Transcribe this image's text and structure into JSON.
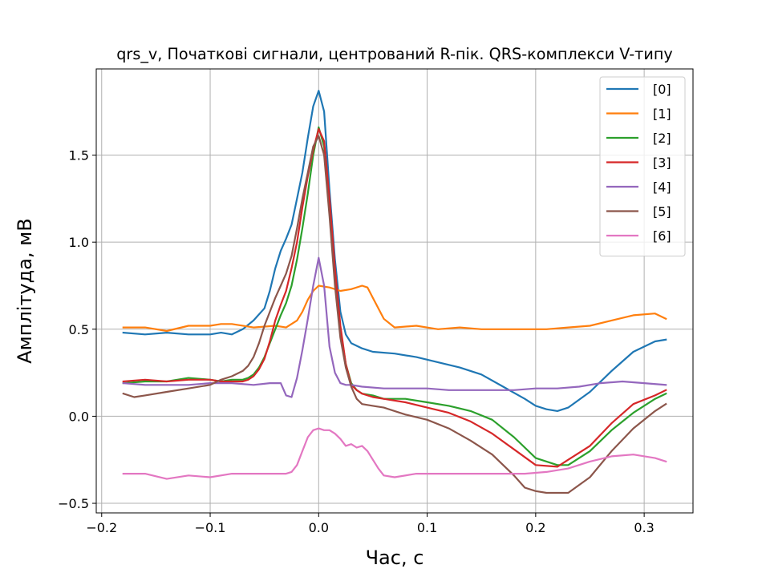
{
  "chart_data": {
    "type": "line",
    "title": "qrs_v, Початкові сигнали, центрований R-пік. QRS-комплекси V-типу",
    "xlabel": "Час, с",
    "ylabel": "Амплітуда, мВ",
    "xlim": [
      -0.205,
      0.345
    ],
    "ylim": [
      -0.555,
      1.995
    ],
    "xticks": [
      -0.2,
      -0.1,
      0.0,
      0.1,
      0.2,
      0.3
    ],
    "xtick_labels": [
      "−0.2",
      "−0.1",
      "0.0",
      "0.1",
      "0.2",
      "0.3"
    ],
    "yticks": [
      -0.5,
      0.0,
      0.5,
      1.0,
      1.5
    ],
    "ytick_labels": [
      "−0.5",
      "0.0",
      "0.5",
      "1.0",
      "1.5"
    ],
    "grid": true,
    "legend_position": "top-right",
    "series": [
      {
        "name": "[0]",
        "color": "#1f77b4",
        "x": [
          -0.18,
          -0.16,
          -0.14,
          -0.12,
          -0.1,
          -0.09,
          -0.08,
          -0.07,
          -0.06,
          -0.05,
          -0.045,
          -0.04,
          -0.035,
          -0.03,
          -0.025,
          -0.02,
          -0.015,
          -0.01,
          -0.005,
          0.0,
          0.005,
          0.01,
          0.015,
          0.02,
          0.025,
          0.03,
          0.04,
          0.05,
          0.07,
          0.09,
          0.11,
          0.13,
          0.15,
          0.17,
          0.19,
          0.2,
          0.21,
          0.22,
          0.23,
          0.25,
          0.27,
          0.29,
          0.31,
          0.32
        ],
        "y": [
          0.48,
          0.47,
          0.48,
          0.47,
          0.47,
          0.48,
          0.47,
          0.5,
          0.55,
          0.62,
          0.72,
          0.85,
          0.95,
          1.02,
          1.1,
          1.25,
          1.4,
          1.6,
          1.78,
          1.87,
          1.75,
          1.3,
          0.9,
          0.6,
          0.47,
          0.42,
          0.39,
          0.37,
          0.36,
          0.34,
          0.31,
          0.28,
          0.24,
          0.17,
          0.1,
          0.06,
          0.04,
          0.03,
          0.05,
          0.14,
          0.26,
          0.37,
          0.43,
          0.44
        ]
      },
      {
        "name": "[1]",
        "color": "#ff7f0e",
        "x": [
          -0.18,
          -0.16,
          -0.14,
          -0.12,
          -0.1,
          -0.09,
          -0.08,
          -0.06,
          -0.04,
          -0.03,
          -0.02,
          -0.015,
          -0.01,
          -0.005,
          0.0,
          0.01,
          0.02,
          0.03,
          0.04,
          0.045,
          0.05,
          0.055,
          0.06,
          0.07,
          0.09,
          0.11,
          0.13,
          0.15,
          0.17,
          0.19,
          0.21,
          0.23,
          0.25,
          0.27,
          0.29,
          0.31,
          0.32
        ],
        "y": [
          0.51,
          0.51,
          0.49,
          0.52,
          0.52,
          0.53,
          0.53,
          0.51,
          0.52,
          0.51,
          0.55,
          0.6,
          0.67,
          0.72,
          0.75,
          0.74,
          0.72,
          0.73,
          0.75,
          0.74,
          0.68,
          0.62,
          0.56,
          0.51,
          0.52,
          0.5,
          0.51,
          0.5,
          0.5,
          0.5,
          0.5,
          0.51,
          0.52,
          0.55,
          0.58,
          0.59,
          0.56
        ]
      },
      {
        "name": "[2]",
        "color": "#2ca02c",
        "x": [
          -0.18,
          -0.16,
          -0.14,
          -0.12,
          -0.1,
          -0.09,
          -0.08,
          -0.07,
          -0.065,
          -0.06,
          -0.055,
          -0.05,
          -0.045,
          -0.04,
          -0.035,
          -0.03,
          -0.025,
          -0.02,
          -0.015,
          -0.01,
          -0.005,
          0.0,
          0.005,
          0.01,
          0.015,
          0.02,
          0.025,
          0.03,
          0.035,
          0.04,
          0.05,
          0.06,
          0.08,
          0.1,
          0.12,
          0.14,
          0.16,
          0.18,
          0.2,
          0.22,
          0.23,
          0.25,
          0.27,
          0.29,
          0.31,
          0.32
        ],
        "y": [
          0.19,
          0.2,
          0.2,
          0.22,
          0.21,
          0.2,
          0.21,
          0.21,
          0.22,
          0.24,
          0.28,
          0.34,
          0.42,
          0.5,
          0.58,
          0.65,
          0.75,
          0.9,
          1.08,
          1.28,
          1.5,
          1.66,
          1.55,
          1.2,
          0.8,
          0.5,
          0.3,
          0.19,
          0.15,
          0.13,
          0.12,
          0.1,
          0.1,
          0.08,
          0.06,
          0.03,
          -0.02,
          -0.12,
          -0.24,
          -0.28,
          -0.28,
          -0.2,
          -0.08,
          0.02,
          0.1,
          0.13
        ]
      },
      {
        "name": "[3]",
        "color": "#d62728",
        "x": [
          -0.18,
          -0.16,
          -0.14,
          -0.12,
          -0.1,
          -0.09,
          -0.08,
          -0.07,
          -0.065,
          -0.06,
          -0.055,
          -0.05,
          -0.045,
          -0.04,
          -0.035,
          -0.03,
          -0.025,
          -0.02,
          -0.015,
          -0.01,
          -0.005,
          0.0,
          0.005,
          0.01,
          0.015,
          0.02,
          0.025,
          0.03,
          0.035,
          0.04,
          0.05,
          0.06,
          0.08,
          0.1,
          0.12,
          0.14,
          0.16,
          0.18,
          0.2,
          0.22,
          0.23,
          0.25,
          0.27,
          0.29,
          0.31,
          0.32
        ],
        "y": [
          0.2,
          0.21,
          0.2,
          0.21,
          0.21,
          0.2,
          0.2,
          0.2,
          0.21,
          0.23,
          0.27,
          0.33,
          0.43,
          0.55,
          0.64,
          0.72,
          0.85,
          1.0,
          1.2,
          1.38,
          1.53,
          1.65,
          1.58,
          1.25,
          0.85,
          0.52,
          0.3,
          0.18,
          0.15,
          0.13,
          0.11,
          0.1,
          0.08,
          0.05,
          0.02,
          -0.03,
          -0.1,
          -0.19,
          -0.28,
          -0.29,
          -0.25,
          -0.17,
          -0.04,
          0.07,
          0.12,
          0.15
        ]
      },
      {
        "name": "[4]",
        "color": "#9467bd",
        "x": [
          -0.18,
          -0.16,
          -0.14,
          -0.12,
          -0.1,
          -0.08,
          -0.06,
          -0.045,
          -0.035,
          -0.03,
          -0.025,
          -0.02,
          -0.015,
          -0.01,
          -0.005,
          0.0,
          0.005,
          0.01,
          0.015,
          0.02,
          0.025,
          0.03,
          0.04,
          0.06,
          0.08,
          0.1,
          0.12,
          0.14,
          0.16,
          0.18,
          0.2,
          0.22,
          0.24,
          0.26,
          0.28,
          0.3,
          0.32
        ],
        "y": [
          0.19,
          0.18,
          0.18,
          0.18,
          0.19,
          0.19,
          0.18,
          0.19,
          0.19,
          0.12,
          0.11,
          0.22,
          0.38,
          0.56,
          0.75,
          0.91,
          0.75,
          0.4,
          0.25,
          0.19,
          0.18,
          0.18,
          0.17,
          0.16,
          0.16,
          0.16,
          0.15,
          0.15,
          0.15,
          0.15,
          0.16,
          0.16,
          0.17,
          0.19,
          0.2,
          0.19,
          0.18
        ]
      },
      {
        "name": "[5]",
        "color": "#8c564b",
        "x": [
          -0.18,
          -0.17,
          -0.16,
          -0.14,
          -0.12,
          -0.1,
          -0.09,
          -0.08,
          -0.07,
          -0.065,
          -0.06,
          -0.055,
          -0.05,
          -0.045,
          -0.04,
          -0.035,
          -0.03,
          -0.025,
          -0.02,
          -0.015,
          -0.01,
          -0.005,
          0.0,
          0.005,
          0.01,
          0.015,
          0.02,
          0.025,
          0.03,
          0.035,
          0.04,
          0.05,
          0.06,
          0.08,
          0.1,
          0.12,
          0.14,
          0.16,
          0.18,
          0.19,
          0.2,
          0.21,
          0.22,
          0.23,
          0.25,
          0.27,
          0.29,
          0.31,
          0.32
        ],
        "y": [
          0.13,
          0.11,
          0.12,
          0.14,
          0.16,
          0.18,
          0.21,
          0.23,
          0.26,
          0.29,
          0.34,
          0.42,
          0.52,
          0.6,
          0.68,
          0.75,
          0.82,
          0.92,
          1.08,
          1.25,
          1.4,
          1.55,
          1.61,
          1.5,
          1.15,
          0.75,
          0.45,
          0.28,
          0.17,
          0.1,
          0.07,
          0.06,
          0.05,
          0.01,
          -0.02,
          -0.07,
          -0.14,
          -0.22,
          -0.34,
          -0.41,
          -0.43,
          -0.44,
          -0.44,
          -0.44,
          -0.35,
          -0.2,
          -0.07,
          0.03,
          0.07
        ]
      },
      {
        "name": "[6]",
        "color": "#e377c2",
        "x": [
          -0.18,
          -0.16,
          -0.14,
          -0.12,
          -0.1,
          -0.08,
          -0.06,
          -0.04,
          -0.03,
          -0.025,
          -0.02,
          -0.015,
          -0.01,
          -0.005,
          0.0,
          0.005,
          0.01,
          0.015,
          0.02,
          0.025,
          0.03,
          0.035,
          0.04,
          0.045,
          0.05,
          0.055,
          0.06,
          0.07,
          0.09,
          0.11,
          0.13,
          0.15,
          0.17,
          0.19,
          0.21,
          0.23,
          0.25,
          0.27,
          0.29,
          0.31,
          0.32
        ],
        "y": [
          -0.33,
          -0.33,
          -0.36,
          -0.34,
          -0.35,
          -0.33,
          -0.33,
          -0.33,
          -0.33,
          -0.32,
          -0.28,
          -0.2,
          -0.12,
          -0.08,
          -0.07,
          -0.08,
          -0.08,
          -0.1,
          -0.13,
          -0.17,
          -0.16,
          -0.18,
          -0.17,
          -0.2,
          -0.25,
          -0.3,
          -0.34,
          -0.35,
          -0.33,
          -0.33,
          -0.33,
          -0.33,
          -0.33,
          -0.33,
          -0.32,
          -0.3,
          -0.26,
          -0.23,
          -0.22,
          -0.24,
          -0.26
        ]
      }
    ]
  }
}
